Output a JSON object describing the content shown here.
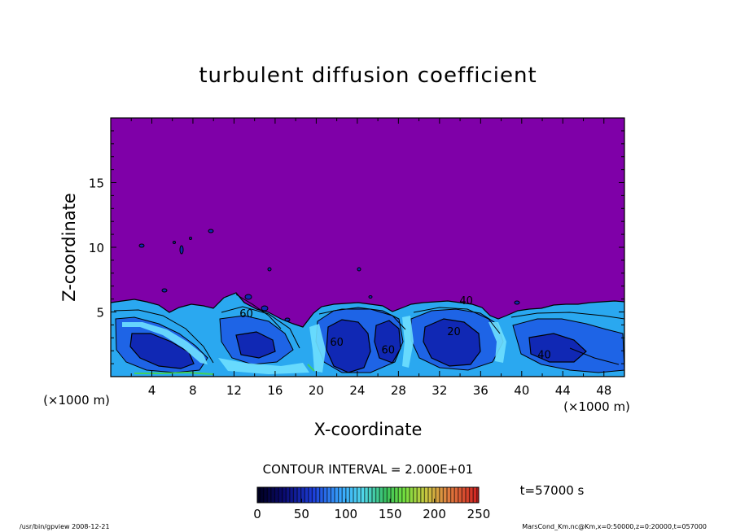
{
  "chart_data": {
    "type": "heatmap",
    "title": "turbulent diffusion coefficient",
    "xlabel": "X-coordinate",
    "ylabel": "Z-coordinate",
    "x_unit_label": "(×1000 m)",
    "z_unit_label": "(×1000 m)",
    "xlim": [
      0,
      50
    ],
    "ylim": [
      0,
      20
    ],
    "x_ticks": [
      "4",
      "8",
      "12",
      "16",
      "20",
      "24",
      "28",
      "32",
      "36",
      "40",
      "44",
      "48"
    ],
    "y_ticks": [
      "5",
      "10",
      "15"
    ],
    "x_tick_values": [
      4,
      8,
      12,
      16,
      20,
      24,
      28,
      32,
      36,
      40,
      44,
      48
    ],
    "y_tick_values": [
      5,
      10,
      15
    ],
    "contour_interval_text": "CONTOUR INTERVAL = 2.000E+01",
    "time_text": "t=57000 s",
    "colorbar": {
      "range": [
        0,
        250
      ],
      "tick_labels": [
        "0",
        "50",
        "100",
        "150",
        "200",
        "250"
      ],
      "tick_values": [
        0,
        50,
        100,
        150,
        200,
        250
      ]
    },
    "contour_labels": [
      {
        "text": "40",
        "x": 42.2,
        "z": 1.4
      },
      {
        "text": "60",
        "x": 22.0,
        "z": 2.4
      },
      {
        "text": "60",
        "x": 27.0,
        "z": 1.8
      },
      {
        "text": "40",
        "x": 34.6,
        "z": 5.6
      },
      {
        "text": "60",
        "x": 13.2,
        "z": 4.6
      },
      {
        "text": "20",
        "x": 33.4,
        "z": 3.2
      }
    ],
    "background_color": "#7f00a8",
    "turbulent_layer_top_km": 6,
    "colormap": [
      "#000040",
      "#0000a0",
      "#1a3cff",
      "#1e90ff",
      "#40e0ff",
      "#20c060",
      "#60ff40",
      "#ffd000",
      "#ff6000",
      "#e00000"
    ]
  },
  "footer": {
    "left": "/usr/bin/gpview   2008-12-21",
    "right": "MarsCond_Km.nc@Km,x=0:50000,z=0:20000,t=057000"
  }
}
